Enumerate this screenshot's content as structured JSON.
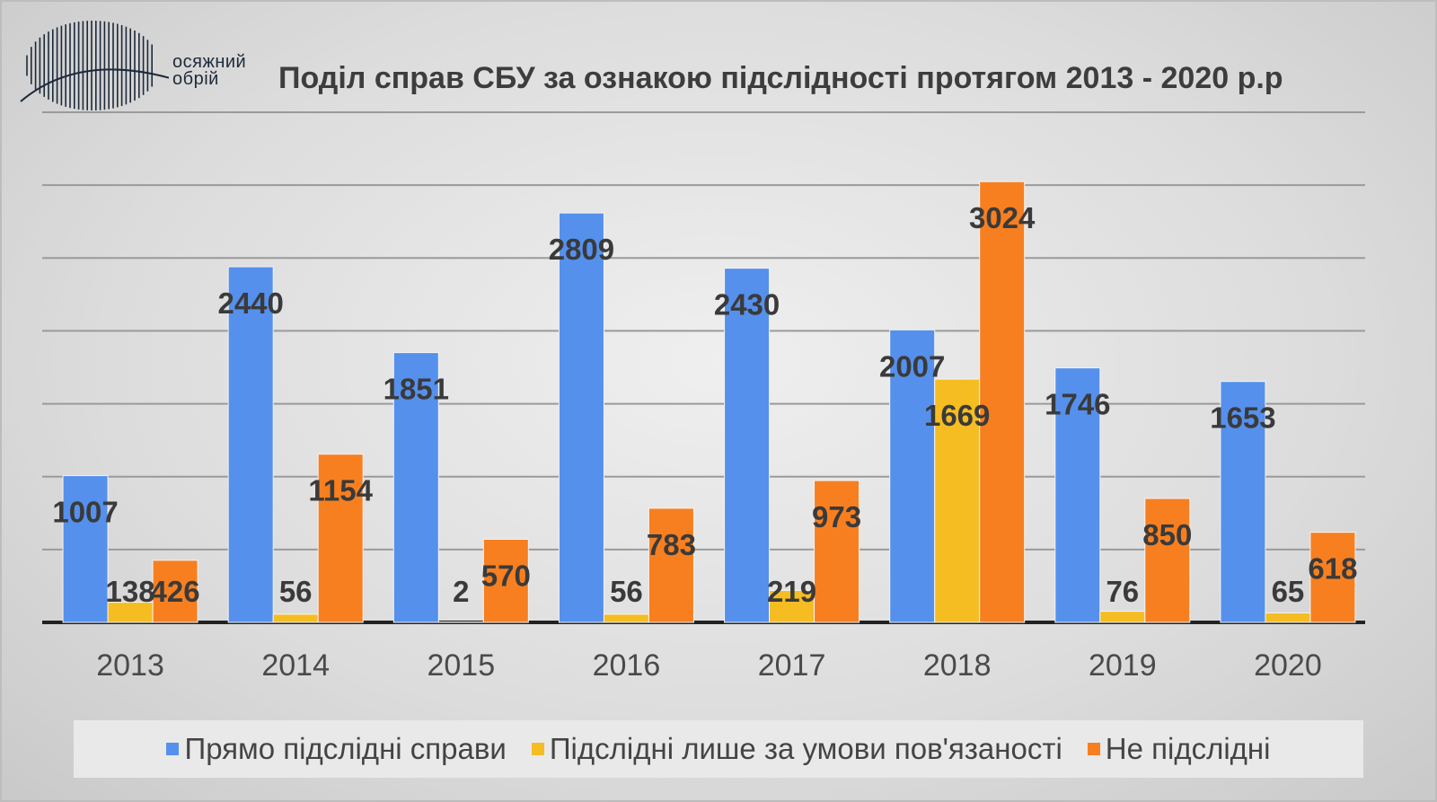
{
  "logo": {
    "line1": "осяжний",
    "line2": "обрій"
  },
  "chart_data": {
    "type": "bar",
    "title": "Поділ справ СБУ за ознакою підслідності протягом 2013 - 2020 р.р",
    "categories": [
      "2013",
      "2014",
      "2015",
      "2016",
      "2017",
      "2018",
      "2019",
      "2020"
    ],
    "series": [
      {
        "name": "Прямо підслідні справи",
        "color": "#5590ec",
        "values": [
          1007,
          2440,
          1851,
          2809,
          2430,
          2007,
          1746,
          1653
        ]
      },
      {
        "name": "Підслідні лише за умови пов'язаності",
        "color": "#f5bd22",
        "values": [
          138,
          56,
          2,
          56,
          219,
          1669,
          76,
          65
        ]
      },
      {
        "name": "Не підслідні",
        "color": "#f77f20",
        "values": [
          426,
          1154,
          570,
          783,
          973,
          3024,
          850,
          618
        ]
      }
    ],
    "xlabel": "",
    "ylabel": "",
    "ylim": [
      0,
      3500
    ],
    "grid": true,
    "legend": "bottom"
  }
}
